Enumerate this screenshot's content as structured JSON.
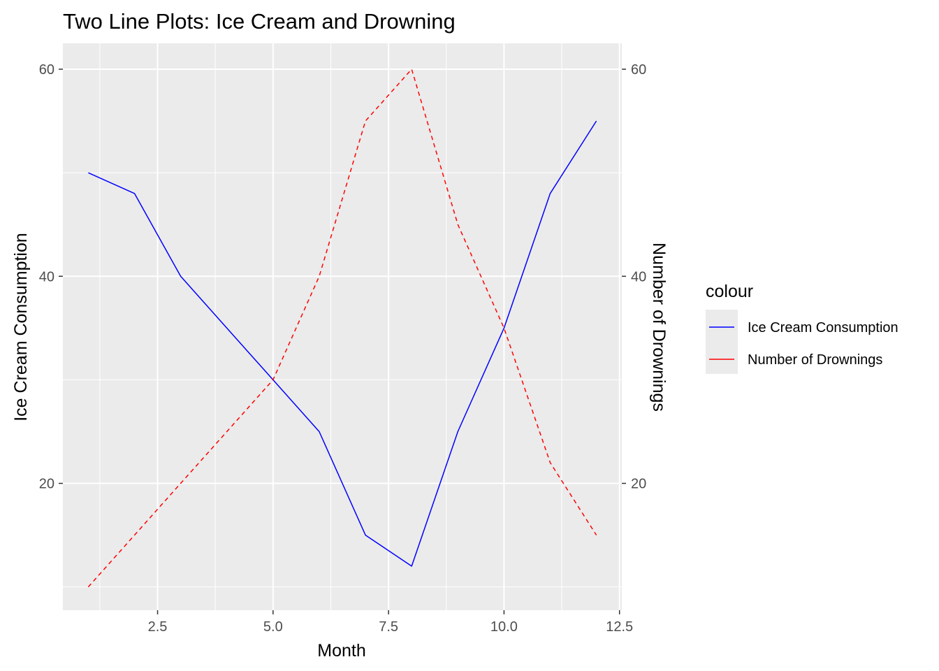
{
  "chart_data": {
    "type": "line",
    "title": "Two Line Plots: Ice Cream and Drowning",
    "xlabel": "Month",
    "ylabel": "Ice Cream Consumption",
    "ylabel_secondary": "Number of Drownings",
    "xlim": [
      0.45,
      12.55
    ],
    "ylim": [
      7.75,
      62.5
    ],
    "x_ticks": [
      2.5,
      5.0,
      7.5,
      10.0,
      12.5
    ],
    "x_tick_labels": [
      "2.5",
      "5.0",
      "7.5",
      "10.0",
      "12.5"
    ],
    "y_ticks": [
      20,
      40,
      60
    ],
    "y_tick_labels": [
      "20",
      "40",
      "60"
    ],
    "y2_ticks": [
      20,
      40,
      60
    ],
    "y2_tick_labels": [
      "20",
      "40",
      "60"
    ],
    "grid": true,
    "legend_title": "colour",
    "legend_position": "right",
    "x": [
      1,
      2,
      3,
      4,
      5,
      6,
      7,
      8,
      9,
      10,
      11,
      12
    ],
    "series": [
      {
        "name": "Ice Cream Consumption",
        "color": "#0000FF",
        "linetype": "solid",
        "values": [
          50,
          48,
          40,
          35,
          30,
          25,
          15,
          12,
          25,
          35,
          48,
          55
        ]
      },
      {
        "name": "Number of Drownings",
        "color": "#FF0000",
        "linetype": "dashed",
        "values": [
          10,
          15,
          20,
          25,
          30,
          40,
          55,
          60,
          45,
          35,
          22,
          15
        ]
      }
    ]
  }
}
